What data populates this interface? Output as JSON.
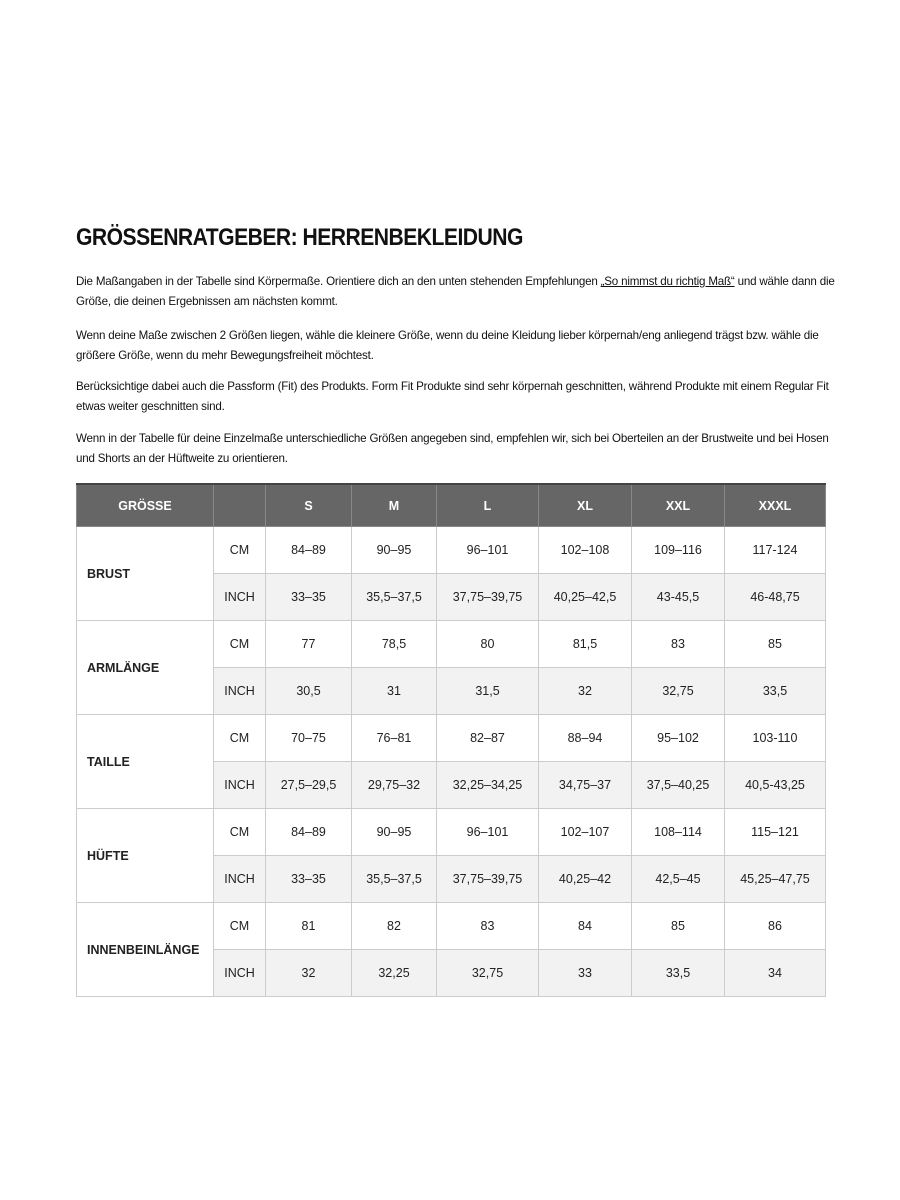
{
  "title": "GRÖSSENRATGEBER: HERRENBEKLEIDUNG",
  "paragraphs": {
    "p1_before": "Die Maßangaben in der Tabelle sind Körpermaße. Orientiere dich an den unten stehenden Empfehlungen ",
    "p1_link": "„So nimmst du richtig Maß“",
    "p1_after": " und wähle dann die Größe, die deinen Ergebnissen am nächsten kommt.",
    "p2": "Wenn deine Maße zwischen 2 Größen liegen, wähle die kleinere Größe, wenn du deine Kleidung lieber körpernah/eng anliegend trägst bzw. wähle die größere Größe, wenn du mehr Bewegungsfreiheit möchtest.",
    "p3": "Berücksichtige dabei auch die Passform (Fit) des Produkts. Form Fit Produkte sind sehr körpernah geschnitten, während Produkte mit einem Regular Fit etwas weiter geschnitten sind.",
    "p4": "Wenn in der Tabelle für deine Einzelmaße unterschiedliche Größen angegeben sind, empfehlen wir, sich bei Oberteilen an der Brustweite und bei Hosen und Shorts an der Hüftweite zu orientieren."
  },
  "table": {
    "header_label": "GRÖSSE",
    "header_unit": "",
    "sizes": [
      "S",
      "M",
      "L",
      "XL",
      "XXL",
      "XXXL"
    ],
    "rows": [
      {
        "measure": "BRUST",
        "cm_label": "CM",
        "cm": [
          "84–89",
          "90–95",
          "96–101",
          "102–108",
          "109–116",
          "117-124"
        ],
        "inch_label": "INCH",
        "inch": [
          "33–35",
          "35,5–37,5",
          "37,75–39,75",
          "40,25–42,5",
          "43-45,5",
          "46-48,75"
        ]
      },
      {
        "measure": "ARMLÄNGE",
        "cm_label": "CM",
        "cm": [
          "77",
          "78,5",
          "80",
          "81,5",
          "83",
          "85"
        ],
        "inch_label": "INCH",
        "inch": [
          "30,5",
          "31",
          "31,5",
          "32",
          "32,75",
          "33,5"
        ]
      },
      {
        "measure": "TAILLE",
        "cm_label": "CM",
        "cm": [
          "70–75",
          "76–81",
          "82–87",
          "88–94",
          "95–102",
          "103-110"
        ],
        "inch_label": "INCH",
        "inch": [
          "27,5–29,5",
          "29,75–32",
          "32,25–34,25",
          "34,75–37",
          "37,5–40,25",
          "40,5-43,25"
        ]
      },
      {
        "measure": "HÜFTE",
        "cm_label": "CM",
        "cm": [
          "84–89",
          "90–95",
          "96–101",
          "102–107",
          "108–114",
          "115–121"
        ],
        "inch_label": "INCH",
        "inch": [
          "33–35",
          "35,5–37,5",
          "37,75–39,75",
          "40,25–42",
          "42,5–45",
          "45,25–47,75"
        ]
      },
      {
        "measure": "INNENBEINLÄNGE",
        "cm_label": "CM",
        "cm": [
          "81",
          "82",
          "83",
          "84",
          "85",
          "86"
        ],
        "inch_label": "INCH",
        "inch": [
          "32",
          "32,25",
          "32,75",
          "33",
          "33,5",
          "34"
        ]
      }
    ]
  },
  "colors": {
    "header_bg": "#666666",
    "inch_row_bg": "#f2f2f2",
    "border": "#cccccc"
  }
}
